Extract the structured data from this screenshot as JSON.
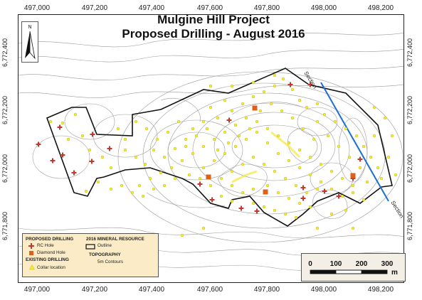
{
  "title": {
    "line1": "Mulgine Hill Project",
    "line2": "Proposed Drilling - August 2016"
  },
  "north_arrow": {
    "label": "N",
    "icon": "north-arrow-icon"
  },
  "axes": {
    "eastings": [
      "497,000",
      "497,200",
      "497,400",
      "497,600",
      "497,800",
      "498,000",
      "498,200"
    ],
    "northings": [
      "6,772,400",
      "6,772,200",
      "6,772,000",
      "6,771,800"
    ]
  },
  "section": {
    "label_start": "Section",
    "label_end": "Section",
    "color": "#1a6fd1"
  },
  "legend": {
    "proposed_header": "PROPOSED DRILLING",
    "resource_header": "2016 MINERAL RESOURCE",
    "rc_hole": "RC Hole",
    "diamond_hole": "Diamond Hole",
    "outline": "Outline",
    "existing_header": "EXISTING DRILLING",
    "collar": "Collar location",
    "topo_header": "TOPOGRAPHY",
    "contours": "5m Contours",
    "colors": {
      "rc": "#c0392b",
      "diamond": "#e0601a",
      "collar": "#f2ec3a",
      "outline": "#111111"
    }
  },
  "scalebar": {
    "ticks": [
      "0",
      "100",
      "200",
      "300"
    ],
    "unit": "m"
  }
}
